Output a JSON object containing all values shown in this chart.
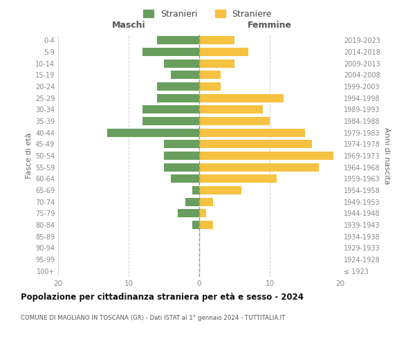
{
  "age_groups": [
    "100+",
    "95-99",
    "90-94",
    "85-89",
    "80-84",
    "75-79",
    "70-74",
    "65-69",
    "60-64",
    "55-59",
    "50-54",
    "45-49",
    "40-44",
    "35-39",
    "30-34",
    "25-29",
    "20-24",
    "15-19",
    "10-14",
    "5-9",
    "0-4"
  ],
  "birth_years": [
    "≤ 1923",
    "1924-1928",
    "1929-1933",
    "1934-1938",
    "1939-1943",
    "1944-1948",
    "1949-1953",
    "1954-1958",
    "1959-1963",
    "1964-1968",
    "1969-1973",
    "1974-1978",
    "1979-1983",
    "1984-1988",
    "1989-1993",
    "1994-1998",
    "1999-2003",
    "2004-2008",
    "2009-2013",
    "2014-2018",
    "2019-2023"
  ],
  "maschi": [
    0,
    0,
    0,
    0,
    1,
    3,
    2,
    1,
    4,
    5,
    5,
    5,
    13,
    8,
    8,
    6,
    6,
    4,
    5,
    8,
    6
  ],
  "femmine": [
    0,
    0,
    0,
    0,
    2,
    1,
    2,
    6,
    11,
    17,
    19,
    16,
    15,
    10,
    9,
    12,
    3,
    3,
    5,
    7,
    5
  ],
  "color_maschi": "#6a9e5f",
  "color_femmine": "#f5c242",
  "background_color": "#ffffff",
  "grid_color": "#cccccc",
  "title": "Popolazione per cittadinanza straniera per età e sesso - 2024",
  "subtitle": "COMUNE DI MAGLIANO IN TOSCANA (GR) - Dati ISTAT al 1° gennaio 2024 - TUTTITALIA.IT",
  "label_maschi": "Maschi",
  "label_femmine": "Femmine",
  "ylabel_left": "Fasce di età",
  "ylabel_right": "Anni di nascita",
  "legend_stranieri": "Stranieri",
  "legend_straniere": "Straniere",
  "xlim": 20
}
